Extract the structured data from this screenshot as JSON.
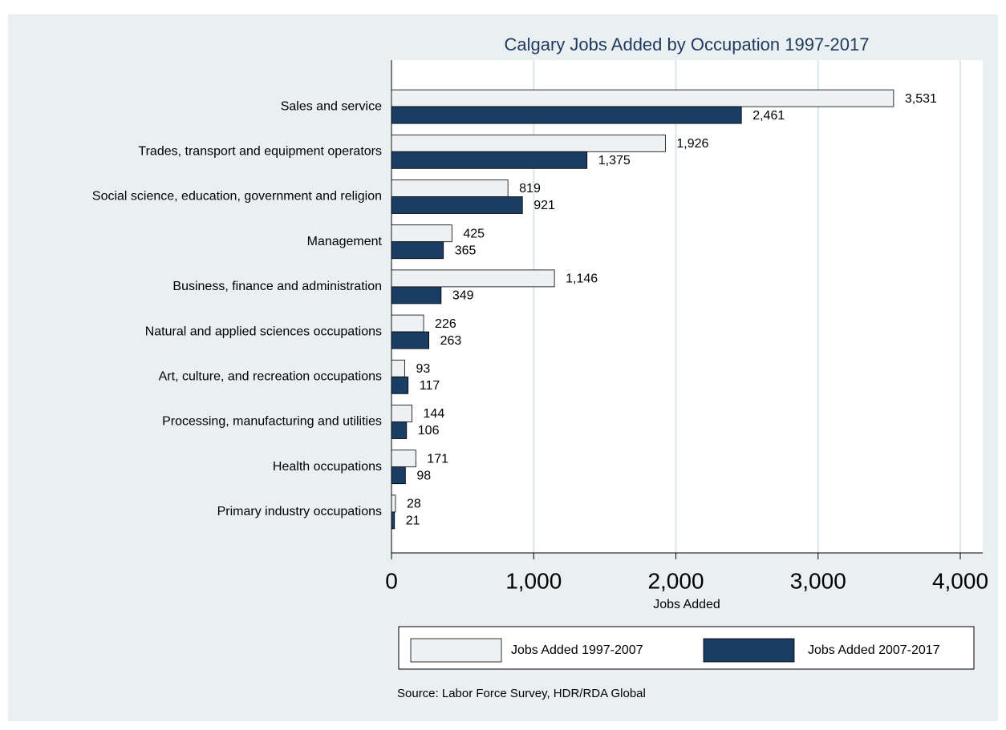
{
  "chart_data": {
    "type": "barh",
    "title": "Calgary Jobs Added by Occupation 1997-2017",
    "xlabel": "Jobs Added",
    "source": "Source: Labor Force Survey, HDR/RDA Global",
    "categories": [
      "Sales and service",
      "Trades, transport and equipment operators",
      "Social science, education, government and religion",
      "Management",
      "Business, finance and administration",
      "Natural and applied sciences occupations",
      "Art, culture, and recreation occupations",
      "Processing, manufacturing and utilities",
      "Health occupations",
      "Primary industry occupations"
    ],
    "series": [
      {
        "name": "Jobs Added 1997-2007",
        "color": "#edf1f3",
        "values": [
          3531,
          1926,
          819,
          425,
          1146,
          226,
          93,
          144,
          171,
          28
        ],
        "value_labels": [
          "3,531",
          "1,926",
          "819",
          "425",
          "1,146",
          "226",
          "93",
          "144",
          "171",
          "28"
        ]
      },
      {
        "name": "Jobs Added 2007-2017",
        "color": "#1a3d63",
        "values": [
          2461,
          1375,
          921,
          365,
          349,
          263,
          117,
          106,
          98,
          21
        ],
        "value_labels": [
          "2,461",
          "1,375",
          "921",
          "365",
          "349",
          "263",
          "117",
          "106",
          "98",
          "21"
        ]
      }
    ],
    "xlim": [
      0,
      4000
    ],
    "xticks": [
      0,
      {
        "value": 1000,
        "label": "1,000"
      },
      {
        "value": 2000,
        "label": "2,000"
      },
      {
        "value": 3000,
        "label": "3,000"
      },
      {
        "value": 4000,
        "label": "4,000"
      }
    ],
    "grid": true,
    "legend": "bottom"
  }
}
